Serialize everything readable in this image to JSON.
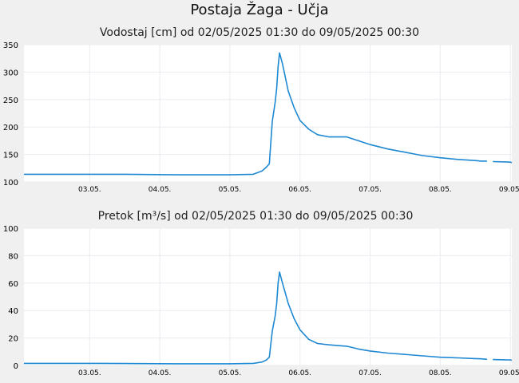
{
  "page": {
    "title": "Postaja Žaga - Učja"
  },
  "colors": {
    "series": "#1e88d2",
    "plot_bg": "#ffffff",
    "grid": "#e8ecf0",
    "page_bg": "#f0f0f0"
  },
  "chart_data": [
    {
      "type": "line",
      "title": "Vodostaj [cm] od 02/05/2025 01:30 do 09/05/2025 00:30",
      "xlabel": "",
      "ylabel": "",
      "ylim": [
        100,
        350
      ],
      "yticks": [
        "100",
        "150",
        "200",
        "250",
        "300",
        "350"
      ],
      "xlim": [
        "2025-05-02 01:30",
        "2025-05-09 00:30"
      ],
      "xtick_dates": [
        "2025-05-03",
        "2025-05-04",
        "2025-05-05",
        "2025-05-06",
        "2025-05-07",
        "2025-05-08",
        "2025-05-09"
      ],
      "xtick_labels": [
        "03.05.",
        "04.05.",
        "05.05.",
        "06.05.",
        "07.05.",
        "08.05.",
        "09.05."
      ],
      "grid": true,
      "series": [
        {
          "x": [
            "2025-05-02 01:30",
            "2025-05-03 00:00",
            "2025-05-03 12:00",
            "2025-05-04 06:00",
            "2025-05-04 12:00",
            "2025-05-05 00:00",
            "2025-05-05 08:00",
            "2025-05-05 11:00",
            "2025-05-05 12:30",
            "2025-05-05 13:30",
            "2025-05-05 14:30",
            "2025-05-05 15:30",
            "2025-05-05 16:00",
            "2025-05-05 16:30",
            "2025-05-05 17:00",
            "2025-05-05 18:00",
            "2025-05-05 20:00",
            "2025-05-05 22:00",
            "2025-05-06 00:00",
            "2025-05-06 03:00",
            "2025-05-06 06:00",
            "2025-05-06 10:00",
            "2025-05-06 16:00",
            "2025-05-06 20:00",
            "2025-05-07 00:00",
            "2025-05-07 06:00",
            "2025-05-07 12:00",
            "2025-05-07 18:00",
            "2025-05-08 00:00",
            "2025-05-08 06:00",
            "2025-05-08 12:00",
            "2025-05-08 14:00",
            "2025-05-08 16:00",
            null,
            "2025-05-08 18:00",
            "2025-05-09 00:00",
            "2025-05-09 00:30"
          ],
          "y": [
            114,
            114,
            114,
            113,
            113,
            113,
            114,
            120,
            127,
            133,
            210,
            245,
            270,
            310,
            335,
            315,
            265,
            235,
            212,
            196,
            186,
            182,
            182,
            175,
            168,
            160,
            154,
            148,
            144,
            141,
            139,
            138,
            138,
            null,
            137,
            136,
            135
          ]
        }
      ]
    },
    {
      "type": "line",
      "title": "Pretok [m³/s] od 02/05/2025 01:30 do 09/05/2025 00:30",
      "xlabel": "",
      "ylabel": "",
      "ylim": [
        0,
        100
      ],
      "yticks": [
        "0",
        "20",
        "40",
        "60",
        "80",
        "100"
      ],
      "xlim": [
        "2025-05-02 01:30",
        "2025-05-09 00:30"
      ],
      "xtick_dates": [
        "2025-05-03",
        "2025-05-04",
        "2025-05-05",
        "2025-05-06",
        "2025-05-07",
        "2025-05-08",
        "2025-05-09"
      ],
      "xtick_labels": [
        "03.05.",
        "04.05.",
        "05.05.",
        "06.05.",
        "07.05.",
        "08.05.",
        "09.05."
      ],
      "grid": true,
      "series": [
        {
          "x": [
            "2025-05-02 01:30",
            "2025-05-03 00:00",
            "2025-05-03 12:00",
            "2025-05-04 06:00",
            "2025-05-04 12:00",
            "2025-05-05 00:00",
            "2025-05-05 08:00",
            "2025-05-05 11:00",
            "2025-05-05 12:30",
            "2025-05-05 13:30",
            "2025-05-05 14:30",
            "2025-05-05 15:30",
            "2025-05-05 16:00",
            "2025-05-05 16:30",
            "2025-05-05 17:00",
            "2025-05-05 18:00",
            "2025-05-05 20:00",
            "2025-05-05 22:00",
            "2025-05-06 00:00",
            "2025-05-06 03:00",
            "2025-05-06 06:00",
            "2025-05-06 10:00",
            "2025-05-06 16:00",
            "2025-05-06 20:00",
            "2025-05-07 00:00",
            "2025-05-07 06:00",
            "2025-05-07 12:00",
            "2025-05-07 18:00",
            "2025-05-08 00:00",
            "2025-05-08 06:00",
            "2025-05-08 12:00",
            "2025-05-08 14:00",
            "2025-05-08 16:00",
            null,
            "2025-05-08 18:00",
            "2025-05-09 00:00",
            "2025-05-09 00:30"
          ],
          "y": [
            1.5,
            1.5,
            1.4,
            1.2,
            1.2,
            1.2,
            1.5,
            2.5,
            4,
            6,
            25,
            36,
            45,
            60,
            68,
            60,
            45,
            34,
            26,
            19,
            16,
            15,
            14,
            12,
            10.5,
            9,
            8,
            7,
            6,
            5.5,
            5,
            4.8,
            4.5,
            null,
            4.3,
            4,
            3.8
          ]
        }
      ]
    }
  ]
}
